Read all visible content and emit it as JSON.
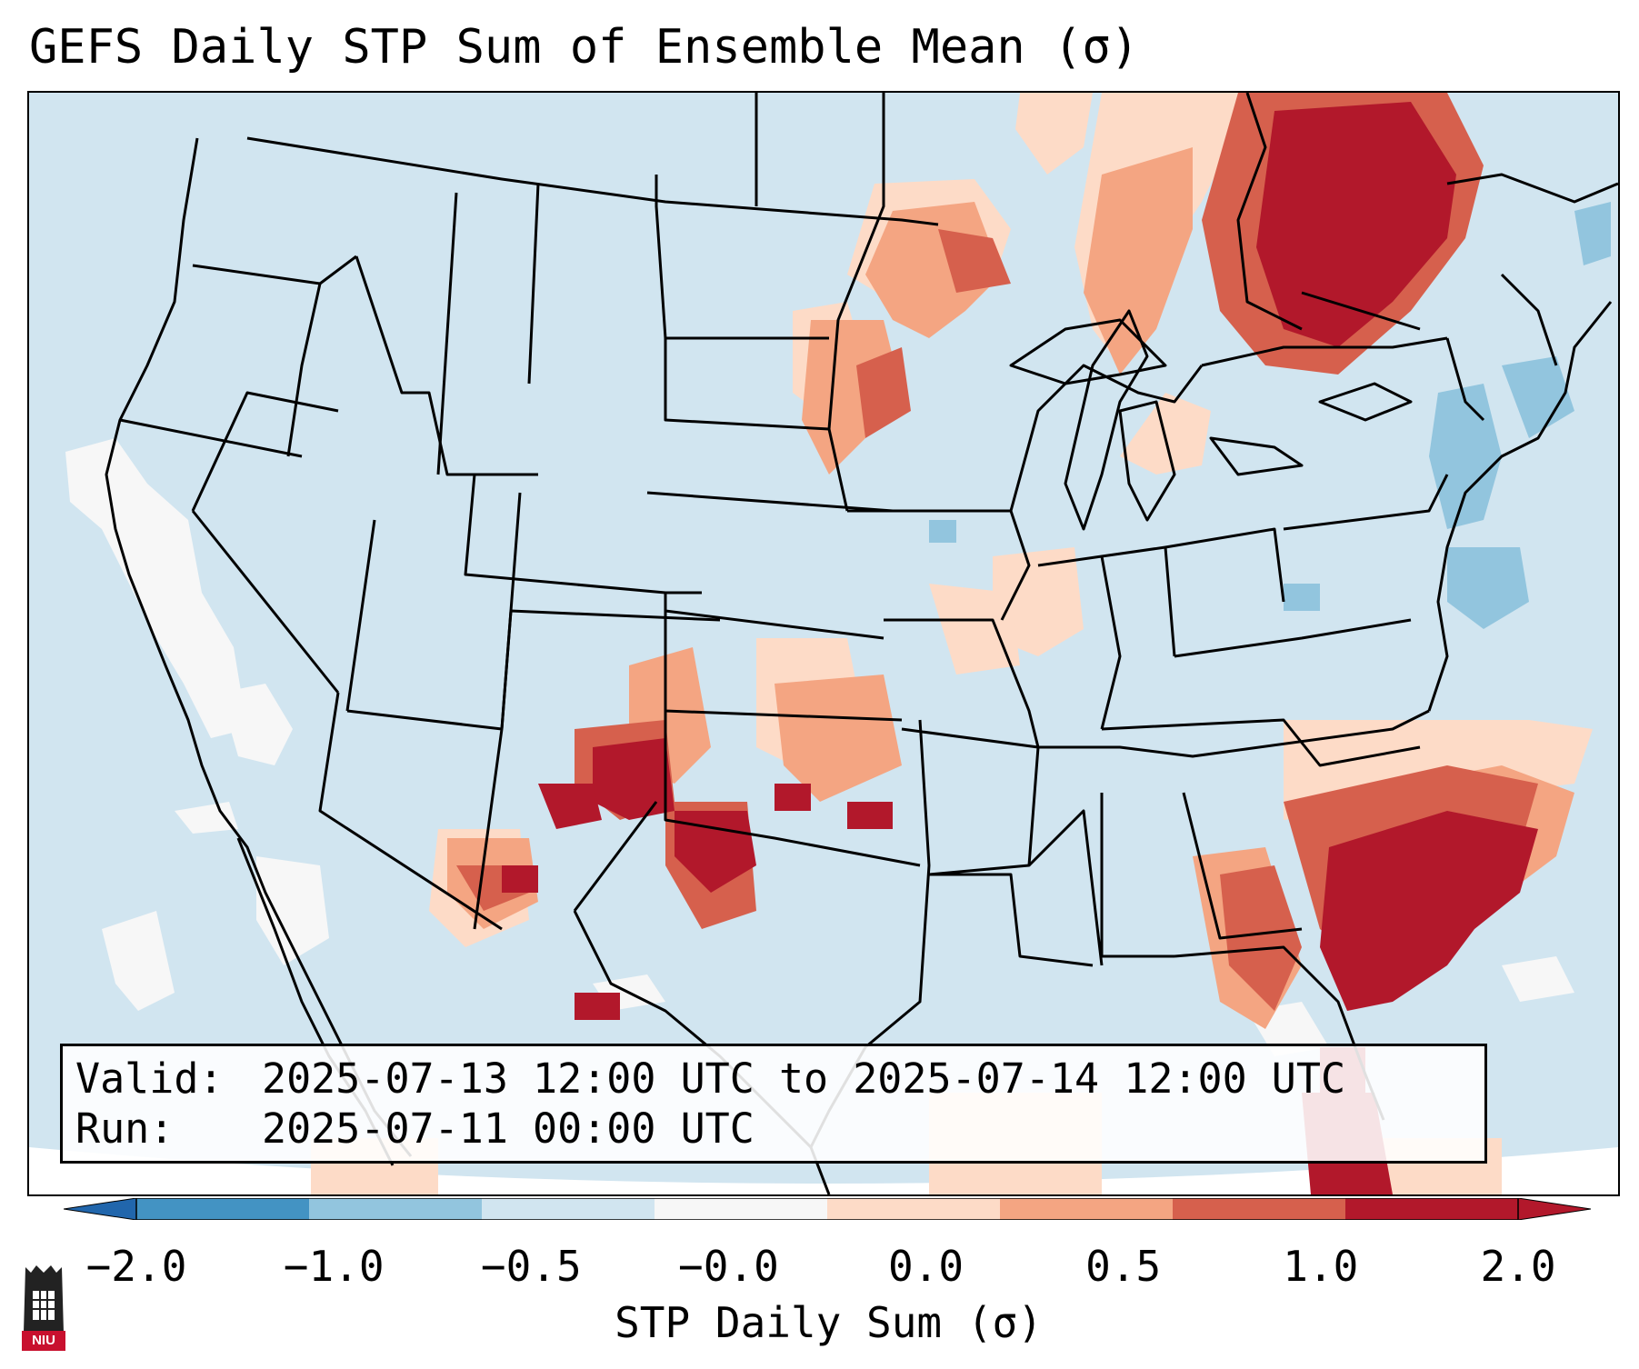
{
  "title": "GEFS Daily STP Sum of Ensemble Mean (σ)",
  "info": {
    "valid_label": "Valid:",
    "valid_value": "2025-07-13 12:00 UTC to 2025-07-14 12:00 UTC",
    "run_label": "Run:",
    "run_value": "2025-07-11 00:00 UTC"
  },
  "colorbar": {
    "label": "STP Daily Sum (σ)",
    "ticks": [
      "−2.0",
      "−1.0",
      "−0.5",
      "−0.0",
      "0.0",
      "0.5",
      "1.0",
      "2.0"
    ],
    "colors": [
      "#4393c3",
      "#92c5de",
      "#d1e5f0",
      "#f7f7f7",
      "#fddbc7",
      "#f4a582",
      "#d6604d",
      "#b2182b"
    ],
    "extend_low_color": "#2166ac",
    "extend_high_color": "#b2182b"
  },
  "map": {
    "background_color": "#d1e5f0",
    "ocean_far_color": "#ffffff",
    "border_color": "#000000"
  },
  "logo": {
    "text": "NIU",
    "color": "#c8102e"
  }
}
